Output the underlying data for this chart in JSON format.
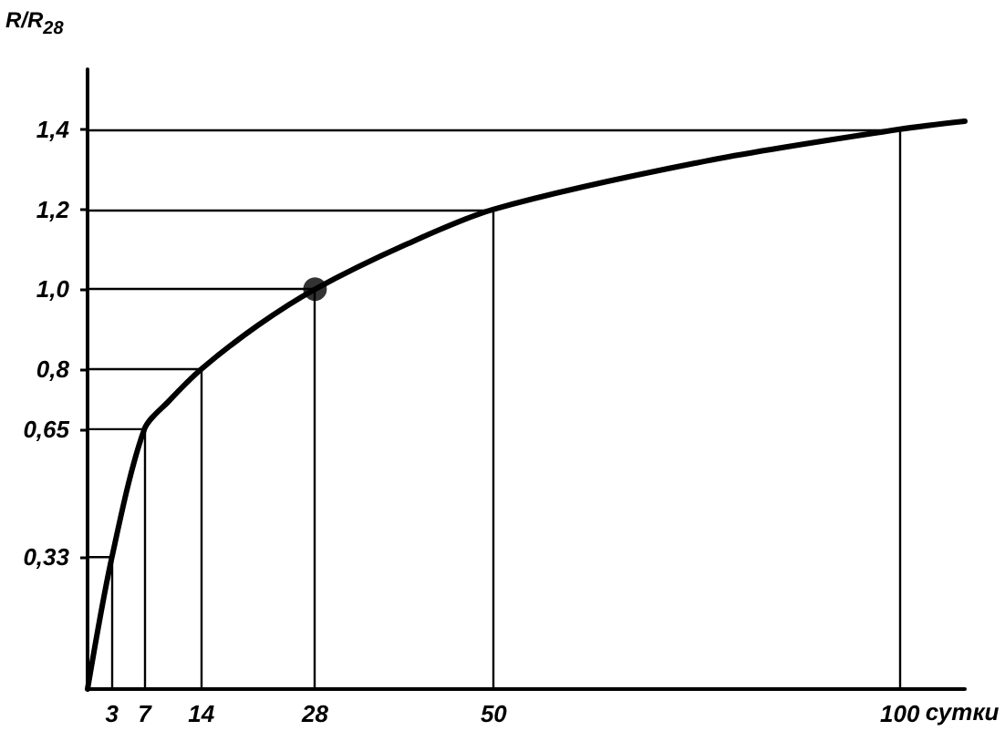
{
  "chart_data": {
    "type": "line",
    "ylabel": "R/R$_{28}$",
    "xlabel": "сутки",
    "xlim": [
      0,
      108
    ],
    "xticks": [
      3,
      7,
      14,
      28,
      50,
      100
    ],
    "ylim": [
      0,
      1.55
    ],
    "yticks": [
      {
        "value": 0.33,
        "label": "0,33"
      },
      {
        "value": 0.65,
        "label": "0,65"
      },
      {
        "value": 0.8,
        "label": "0,8"
      },
      {
        "value": 1.0,
        "label": "1,0"
      },
      {
        "value": 1.2,
        "label": "1,2"
      },
      {
        "value": 1.4,
        "label": "1,4"
      }
    ],
    "marker": "none",
    "series": [
      {
        "color": "#000000",
        "x": [
          0,
          3,
          7,
          10,
          14,
          21,
          28,
          39,
          50,
          76,
          100,
          108
        ],
        "values": [
          0,
          0.33,
          0.65,
          0.72,
          0.8,
          0.91,
          1.0,
          1.11,
          1.2,
          1.32,
          1.4,
          1.42
        ]
      },
      {
        "color": "#000000",
        "x": [
          0,
          3
        ],
        "values": [
          0.33,
          0.33
        ]
      },
      {
        "color": "#000000",
        "x": [
          0,
          7
        ],
        "values": [
          0.65,
          0.65
        ]
      },
      {
        "type": "scatter",
        "color": "#000000",
        "marker": "circle",
        "x": [
          28
        ],
        "values": [
          1.0
        ]
      }
    ],
    "ref_lines": [
      {
        "axis": "x",
        "value": 3,
        "color": "#000000"
      },
      {
        "axis": "x",
        "value": 7,
        "color": "#000000"
      },
      {
        "axis": "x",
        "value": 14,
        "color": "#000000"
      },
      {
        "axis": "x",
        "value": 28,
        "color": "#000000"
      },
      {
        "axis": "x",
        "value": 50,
        "color": "#000000"
      },
      {
        "axis": "x",
        "value": 100,
        "color": "#000000"
      },
      {
        "axis": "y",
        "value": 0.8,
        "color": "#000000"
      },
      {
        "axis": "y",
        "value": 1.0,
        "color": "#000000"
      },
      {
        "axis": "y",
        "value": 1.2,
        "color": "#000000"
      },
      {
        "axis": "y",
        "value": 1.4,
        "color": "#000000"
      }
    ]
  }
}
